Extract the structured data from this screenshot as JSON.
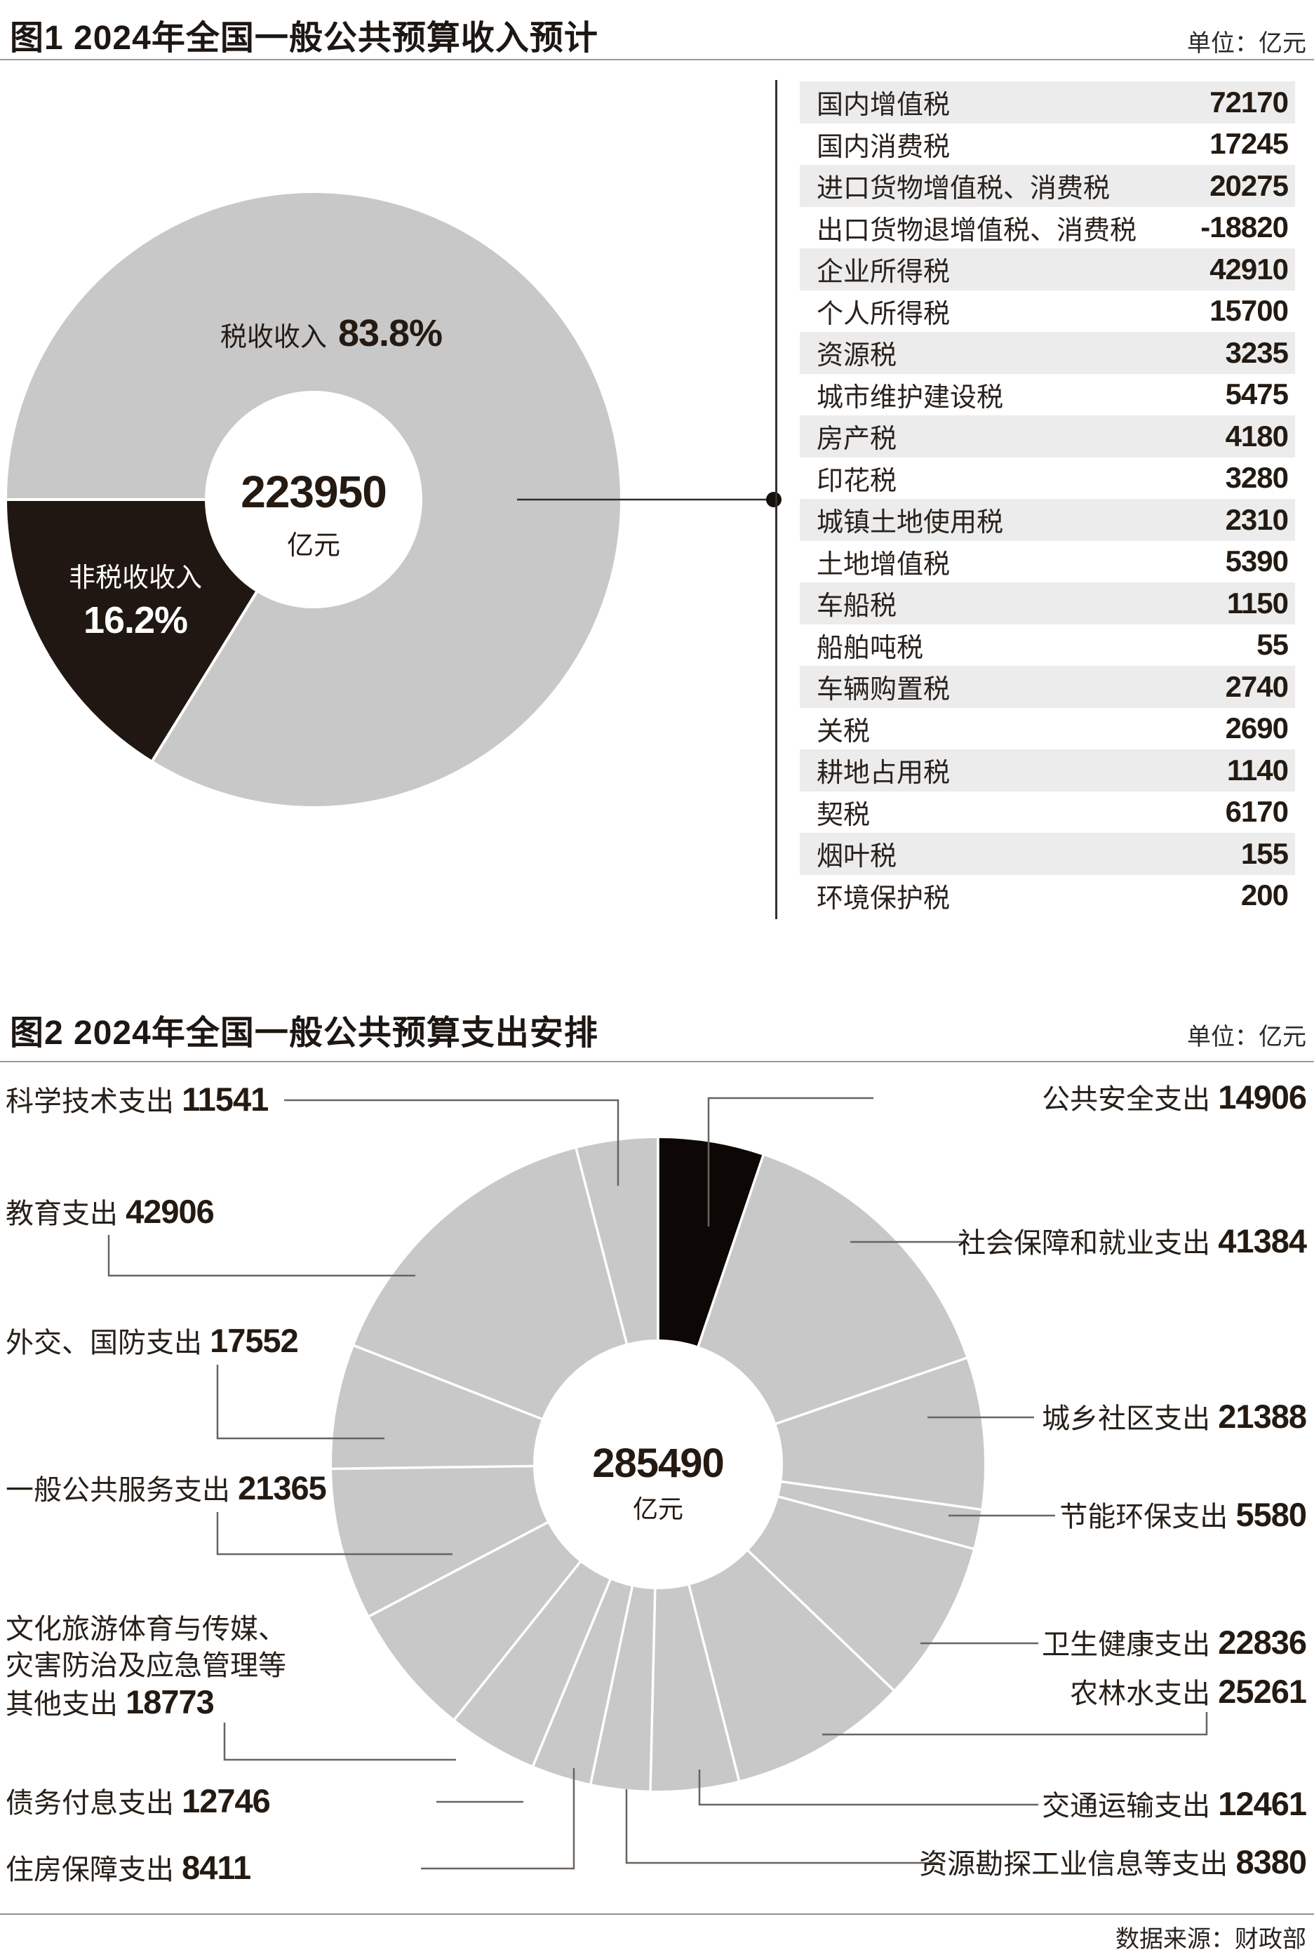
{
  "chart_data": [
    {
      "id": "revenue",
      "type": "pie",
      "subtype": "donut",
      "title": "图1 2024年全国一般公共预算收入预计",
      "unit_label": "单位：亿元",
      "center_value": "223950",
      "center_unit": "亿元",
      "start_angle": 270,
      "legend_position": "inside",
      "series": [
        {
          "name": "税收收入",
          "percent": 83.8,
          "percent_label": "83.8%",
          "color": "#c8c8c9"
        },
        {
          "name": "非税收收入",
          "percent": 16.2,
          "percent_label": "16.2%",
          "color": "#211712"
        }
      ],
      "detail_table": {
        "rows": [
          [
            "国内增值税",
            "72170"
          ],
          [
            "国内消费税",
            "17245"
          ],
          [
            "进口货物增值税、消费税",
            "20275"
          ],
          [
            "出口货物退增值税、消费税",
            "-18820"
          ],
          [
            "企业所得税",
            "42910"
          ],
          [
            "个人所得税",
            "15700"
          ],
          [
            "资源税",
            "3235"
          ],
          [
            "城市维护建设税",
            "5475"
          ],
          [
            "房产税",
            "4180"
          ],
          [
            "印花税",
            "3280"
          ],
          [
            "城镇土地使用税",
            "2310"
          ],
          [
            "土地增值税",
            "5390"
          ],
          [
            "车船税",
            "1150"
          ],
          [
            "船舶吨税",
            "55"
          ],
          [
            "车辆购置税",
            "2740"
          ],
          [
            "关税",
            "2690"
          ],
          [
            "耕地占用税",
            "1140"
          ],
          [
            "契税",
            "6170"
          ],
          [
            "烟叶税",
            "155"
          ],
          [
            "环境保护税",
            "200"
          ]
        ]
      }
    },
    {
      "id": "expenditure",
      "type": "pie",
      "subtype": "donut",
      "title": "图2 2024年全国一般公共预算支出安排",
      "unit_label": "单位：亿元",
      "center_value": "285490",
      "center_unit": "亿元",
      "start_angle": 0,
      "total": 285490,
      "legend_position": "callout-labels",
      "series": [
        {
          "name": "公共安全支出",
          "value": 14906,
          "color": "#0d0805"
        },
        {
          "name": "社会保障和就业支出",
          "value": 41384,
          "color": "#c8c8c9"
        },
        {
          "name": "城乡社区支出",
          "value": 21388,
          "color": "#c8c8c9"
        },
        {
          "name": "节能环保支出",
          "value": 5580,
          "color": "#c8c8c9"
        },
        {
          "name": "卫生健康支出",
          "value": 22836,
          "color": "#c8c8c9"
        },
        {
          "name": "农林水支出",
          "value": 25261,
          "color": "#c8c8c9"
        },
        {
          "name": "交通运输支出",
          "value": 12461,
          "color": "#c8c8c9"
        },
        {
          "name": "资源勘探工业信息等支出",
          "value": 8380,
          "color": "#c8c8c9"
        },
        {
          "name": "住房保障支出",
          "value": 8411,
          "color": "#c8c8c9"
        },
        {
          "name": "债务付息支出",
          "value": 12746,
          "color": "#c8c8c9"
        },
        {
          "name": "文化旅游体育与传媒、灾害防治及应急管理等其他支出",
          "value": 18773,
          "color": "#c8c8c9",
          "label_lines": [
            "文化旅游体育与传媒、",
            "灾害防治及应急管理等",
            "其他支出"
          ]
        },
        {
          "name": "一般公共服务支出",
          "value": 21365,
          "color": "#c8c8c9"
        },
        {
          "name": "外交、国防支出",
          "value": 17552,
          "color": "#c8c8c9"
        },
        {
          "name": "教育支出",
          "value": 42906,
          "color": "#c8c8c9"
        },
        {
          "name": "科学技术支出",
          "value": 11541,
          "color": "#c8c8c9"
        }
      ]
    }
  ],
  "footer": {
    "source": "数据来源：财政部"
  }
}
